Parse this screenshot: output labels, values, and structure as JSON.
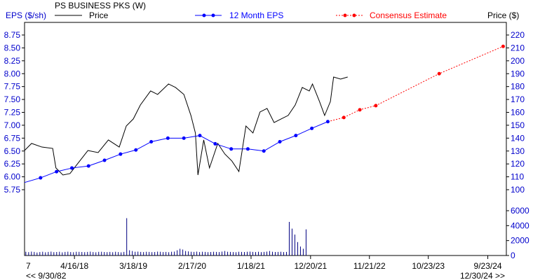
{
  "chart_data": {
    "type": "line",
    "title": "PS BUSINESS PKS (W)",
    "left_axis_label": "EPS ($/sh)",
    "right_axis_label": "Price ($)",
    "legend": {
      "price": "Price",
      "eps": "12 Month EPS",
      "consensus": "Consensus Estimate"
    },
    "colors": {
      "price": "#000000",
      "eps": "#0000ff",
      "consensus": "#ff0000",
      "volume": "#000080",
      "axis_text": "#0000cc"
    },
    "eps_ticks": [
      "8.75",
      "8.50",
      "8.25",
      "8.00",
      "7.75",
      "7.50",
      "7.25",
      "7.00",
      "6.75",
      "6.50",
      "6.25",
      "6.00",
      "5.75"
    ],
    "eps_range": [
      5.75,
      8.75
    ],
    "price_ticks": [
      "220",
      "210",
      "200",
      "190",
      "180",
      "170",
      "160",
      "150",
      "140",
      "130",
      "120",
      "110",
      "100"
    ],
    "price_range": [
      100,
      220
    ],
    "volume_ticks": [
      "6000",
      "4000",
      "2000",
      "0"
    ],
    "volume_range": [
      0,
      6000
    ],
    "x_range": [
      2017.51,
      2025.04
    ],
    "x_ticks": [
      {
        "x": 2018.29,
        "label": "4/16/18"
      },
      {
        "x": 2019.21,
        "label": "3/18/19"
      },
      {
        "x": 2020.13,
        "label": "2/17/20"
      },
      {
        "x": 2021.05,
        "label": "1/18/21"
      },
      {
        "x": 2021.98,
        "label": "12/20/21"
      },
      {
        "x": 2022.9,
        "label": "11/21/22"
      },
      {
        "x": 2023.82,
        "label": "10/23/23"
      },
      {
        "x": 2024.75,
        "label": "9/23/24"
      }
    ],
    "x_first_label": "7",
    "nav_left": "<< 9/30/82",
    "nav_right": "12/30/24 >>",
    "eps_series": [
      [
        2017.51,
        5.89
      ],
      [
        2017.76,
        5.98
      ],
      [
        2018.01,
        6.1
      ],
      [
        2018.25,
        6.17
      ],
      [
        2018.51,
        6.21
      ],
      [
        2018.76,
        6.32
      ],
      [
        2019.01,
        6.44
      ],
      [
        2019.25,
        6.52
      ],
      [
        2019.49,
        6.68
      ],
      [
        2019.75,
        6.75
      ],
      [
        2020.0,
        6.75
      ],
      [
        2020.25,
        6.8
      ],
      [
        2020.49,
        6.64
      ],
      [
        2020.74,
        6.54
      ],
      [
        2021.0,
        6.54
      ],
      [
        2021.25,
        6.5
      ],
      [
        2021.5,
        6.68
      ],
      [
        2021.75,
        6.8
      ],
      [
        2022.0,
        6.94
      ],
      [
        2022.25,
        7.07
      ]
    ],
    "consensus_series": [
      [
        2022.25,
        7.07
      ],
      [
        2022.5,
        7.15
      ],
      [
        2022.75,
        7.3
      ],
      [
        2023.0,
        7.38
      ],
      [
        2023.99,
        8.0
      ],
      [
        2024.99,
        8.53
      ]
    ],
    "price_series": [
      [
        2017.51,
        130.4
      ],
      [
        2017.62,
        135.9
      ],
      [
        2017.78,
        133.1
      ],
      [
        2017.95,
        132.0
      ],
      [
        2018.0,
        116.9
      ],
      [
        2018.11,
        111.4
      ],
      [
        2018.22,
        112.5
      ],
      [
        2018.33,
        119.6
      ],
      [
        2018.5,
        130.4
      ],
      [
        2018.66,
        128.8
      ],
      [
        2018.82,
        138.6
      ],
      [
        2018.99,
        133.1
      ],
      [
        2019.1,
        149.4
      ],
      [
        2019.21,
        154.9
      ],
      [
        2019.32,
        165.7
      ],
      [
        2019.48,
        176.6
      ],
      [
        2019.59,
        173.9
      ],
      [
        2019.76,
        182.0
      ],
      [
        2019.87,
        179.3
      ],
      [
        2020.0,
        173.9
      ],
      [
        2020.11,
        157.6
      ],
      [
        2020.18,
        144.0
      ],
      [
        2020.22,
        111.4
      ],
      [
        2020.31,
        138.6
      ],
      [
        2020.4,
        116.9
      ],
      [
        2020.53,
        135.9
      ],
      [
        2020.64,
        127.7
      ],
      [
        2020.75,
        122.3
      ],
      [
        2020.86,
        114.1
      ],
      [
        2020.97,
        149.4
      ],
      [
        2021.08,
        144.0
      ],
      [
        2021.19,
        160.3
      ],
      [
        2021.3,
        163.0
      ],
      [
        2021.41,
        152.1
      ],
      [
        2021.52,
        154.9
      ],
      [
        2021.63,
        157.6
      ],
      [
        2021.74,
        165.7
      ],
      [
        2021.85,
        179.3
      ],
      [
        2021.96,
        176.6
      ],
      [
        2022.01,
        182.0
      ],
      [
        2022.12,
        168.4
      ],
      [
        2022.2,
        157.6
      ],
      [
        2022.29,
        168.4
      ],
      [
        2022.34,
        187.4
      ],
      [
        2022.45,
        185.8
      ],
      [
        2022.56,
        187.4
      ]
    ],
    "volume_series": {
      "start": 2017.53,
      "step": 0.0438,
      "values": [
        500,
        450,
        520,
        480,
        400,
        460,
        500,
        430,
        480,
        520,
        450,
        470,
        500,
        420,
        480,
        510,
        460,
        440,
        500,
        490,
        470,
        450,
        480,
        520,
        460,
        430,
        490,
        500,
        470,
        450,
        480,
        440,
        500,
        460,
        420,
        480,
        5000,
        700,
        600,
        500,
        520,
        480,
        460,
        500,
        480,
        450,
        470,
        520,
        500,
        460,
        480,
        440,
        500,
        520,
        700,
        900,
        800,
        600,
        550,
        500,
        480,
        520,
        460,
        500,
        480,
        450,
        470,
        500,
        480,
        460,
        520,
        600,
        500,
        480,
        460,
        440,
        500,
        480,
        470,
        500,
        520,
        480,
        460,
        500,
        450,
        480,
        520,
        600,
        500,
        470,
        480,
        500,
        460,
        480,
        4500,
        3600,
        2800,
        1800,
        1200,
        900,
        3500
      ]
    }
  }
}
